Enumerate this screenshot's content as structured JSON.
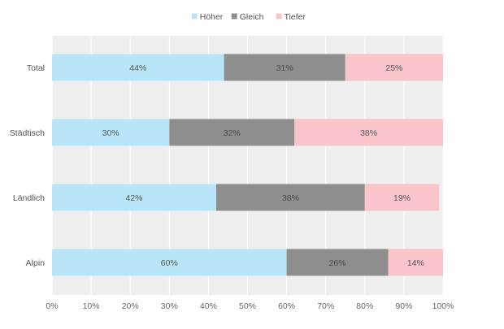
{
  "chart_data": {
    "type": "bar",
    "orientation": "horizontal",
    "stacked": true,
    "categories": [
      "Total",
      "Städtisch",
      "Ländlich",
      "Alpin"
    ],
    "series": [
      {
        "name": "Höher",
        "values": [
          44,
          30,
          42,
          60
        ],
        "labels": [
          "44%",
          "30%",
          "42%",
          "60%"
        ],
        "color": "#b8e6f8"
      },
      {
        "name": "Gleich",
        "values": [
          31,
          32,
          38,
          26
        ],
        "labels": [
          "31%",
          "32%",
          "38%",
          "26%"
        ],
        "color": "#8e8e8e"
      },
      {
        "name": "Tiefer",
        "values": [
          25,
          38,
          19,
          14
        ],
        "labels": [
          "25%",
          "38%",
          "19%",
          "14%"
        ],
        "color": "#f9c4ca"
      }
    ],
    "xlim": [
      0,
      100
    ],
    "x_ticks": [
      "0%",
      "10%",
      "20%",
      "30%",
      "40%",
      "50%",
      "60%",
      "70%",
      "80%",
      "90%",
      "100%"
    ],
    "title": "",
    "xlabel": "",
    "ylabel": "",
    "legend_position": "top-center",
    "grid": true,
    "plot_background": "#efefef",
    "gridline_color": "#ffffff"
  }
}
